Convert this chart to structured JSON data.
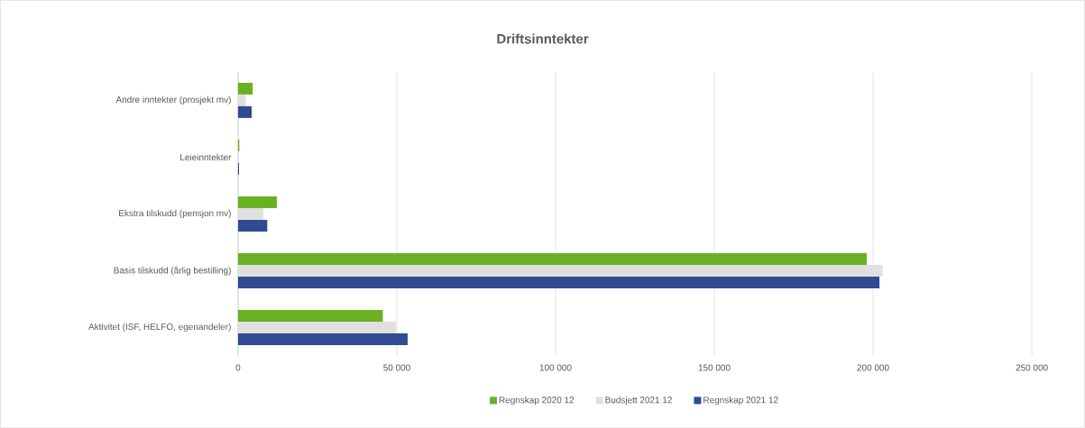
{
  "chart_data": {
    "type": "bar",
    "orientation": "horizontal",
    "title": "Driftsinntekter",
    "categories": [
      "Andre inntekter (prosjekt mv)",
      "Leieinntekter",
      "Ekstra tilskudd (pensjon mv)",
      "Basis tilskudd (årlig bestilling)",
      "Aktivitet (ISF, HELFO, egenandeler)"
    ],
    "series": [
      {
        "name": "Regnskap 2020 12",
        "color": "#6ab023",
        "values": [
          4600,
          400,
          12200,
          198000,
          45600
        ]
      },
      {
        "name": "Budsjett 2021 12",
        "color": "#e0e0e0",
        "values": [
          2400,
          100,
          8000,
          203000,
          49700
        ]
      },
      {
        "name": "Regnskap 2021 12",
        "color": "#2e4c8f",
        "values": [
          4300,
          300,
          9200,
          202000,
          53400
        ]
      }
    ],
    "xlim": [
      0,
      250000
    ],
    "xticks": [
      {
        "value": 0,
        "label": "0"
      },
      {
        "value": 50000,
        "label": "50 000"
      },
      {
        "value": 100000,
        "label": "100 000"
      },
      {
        "value": 150000,
        "label": "150 000"
      },
      {
        "value": 200000,
        "label": "200 000"
      },
      {
        "value": 250000,
        "label": "250 000"
      }
    ],
    "grid": "x",
    "legend": "bottom"
  }
}
